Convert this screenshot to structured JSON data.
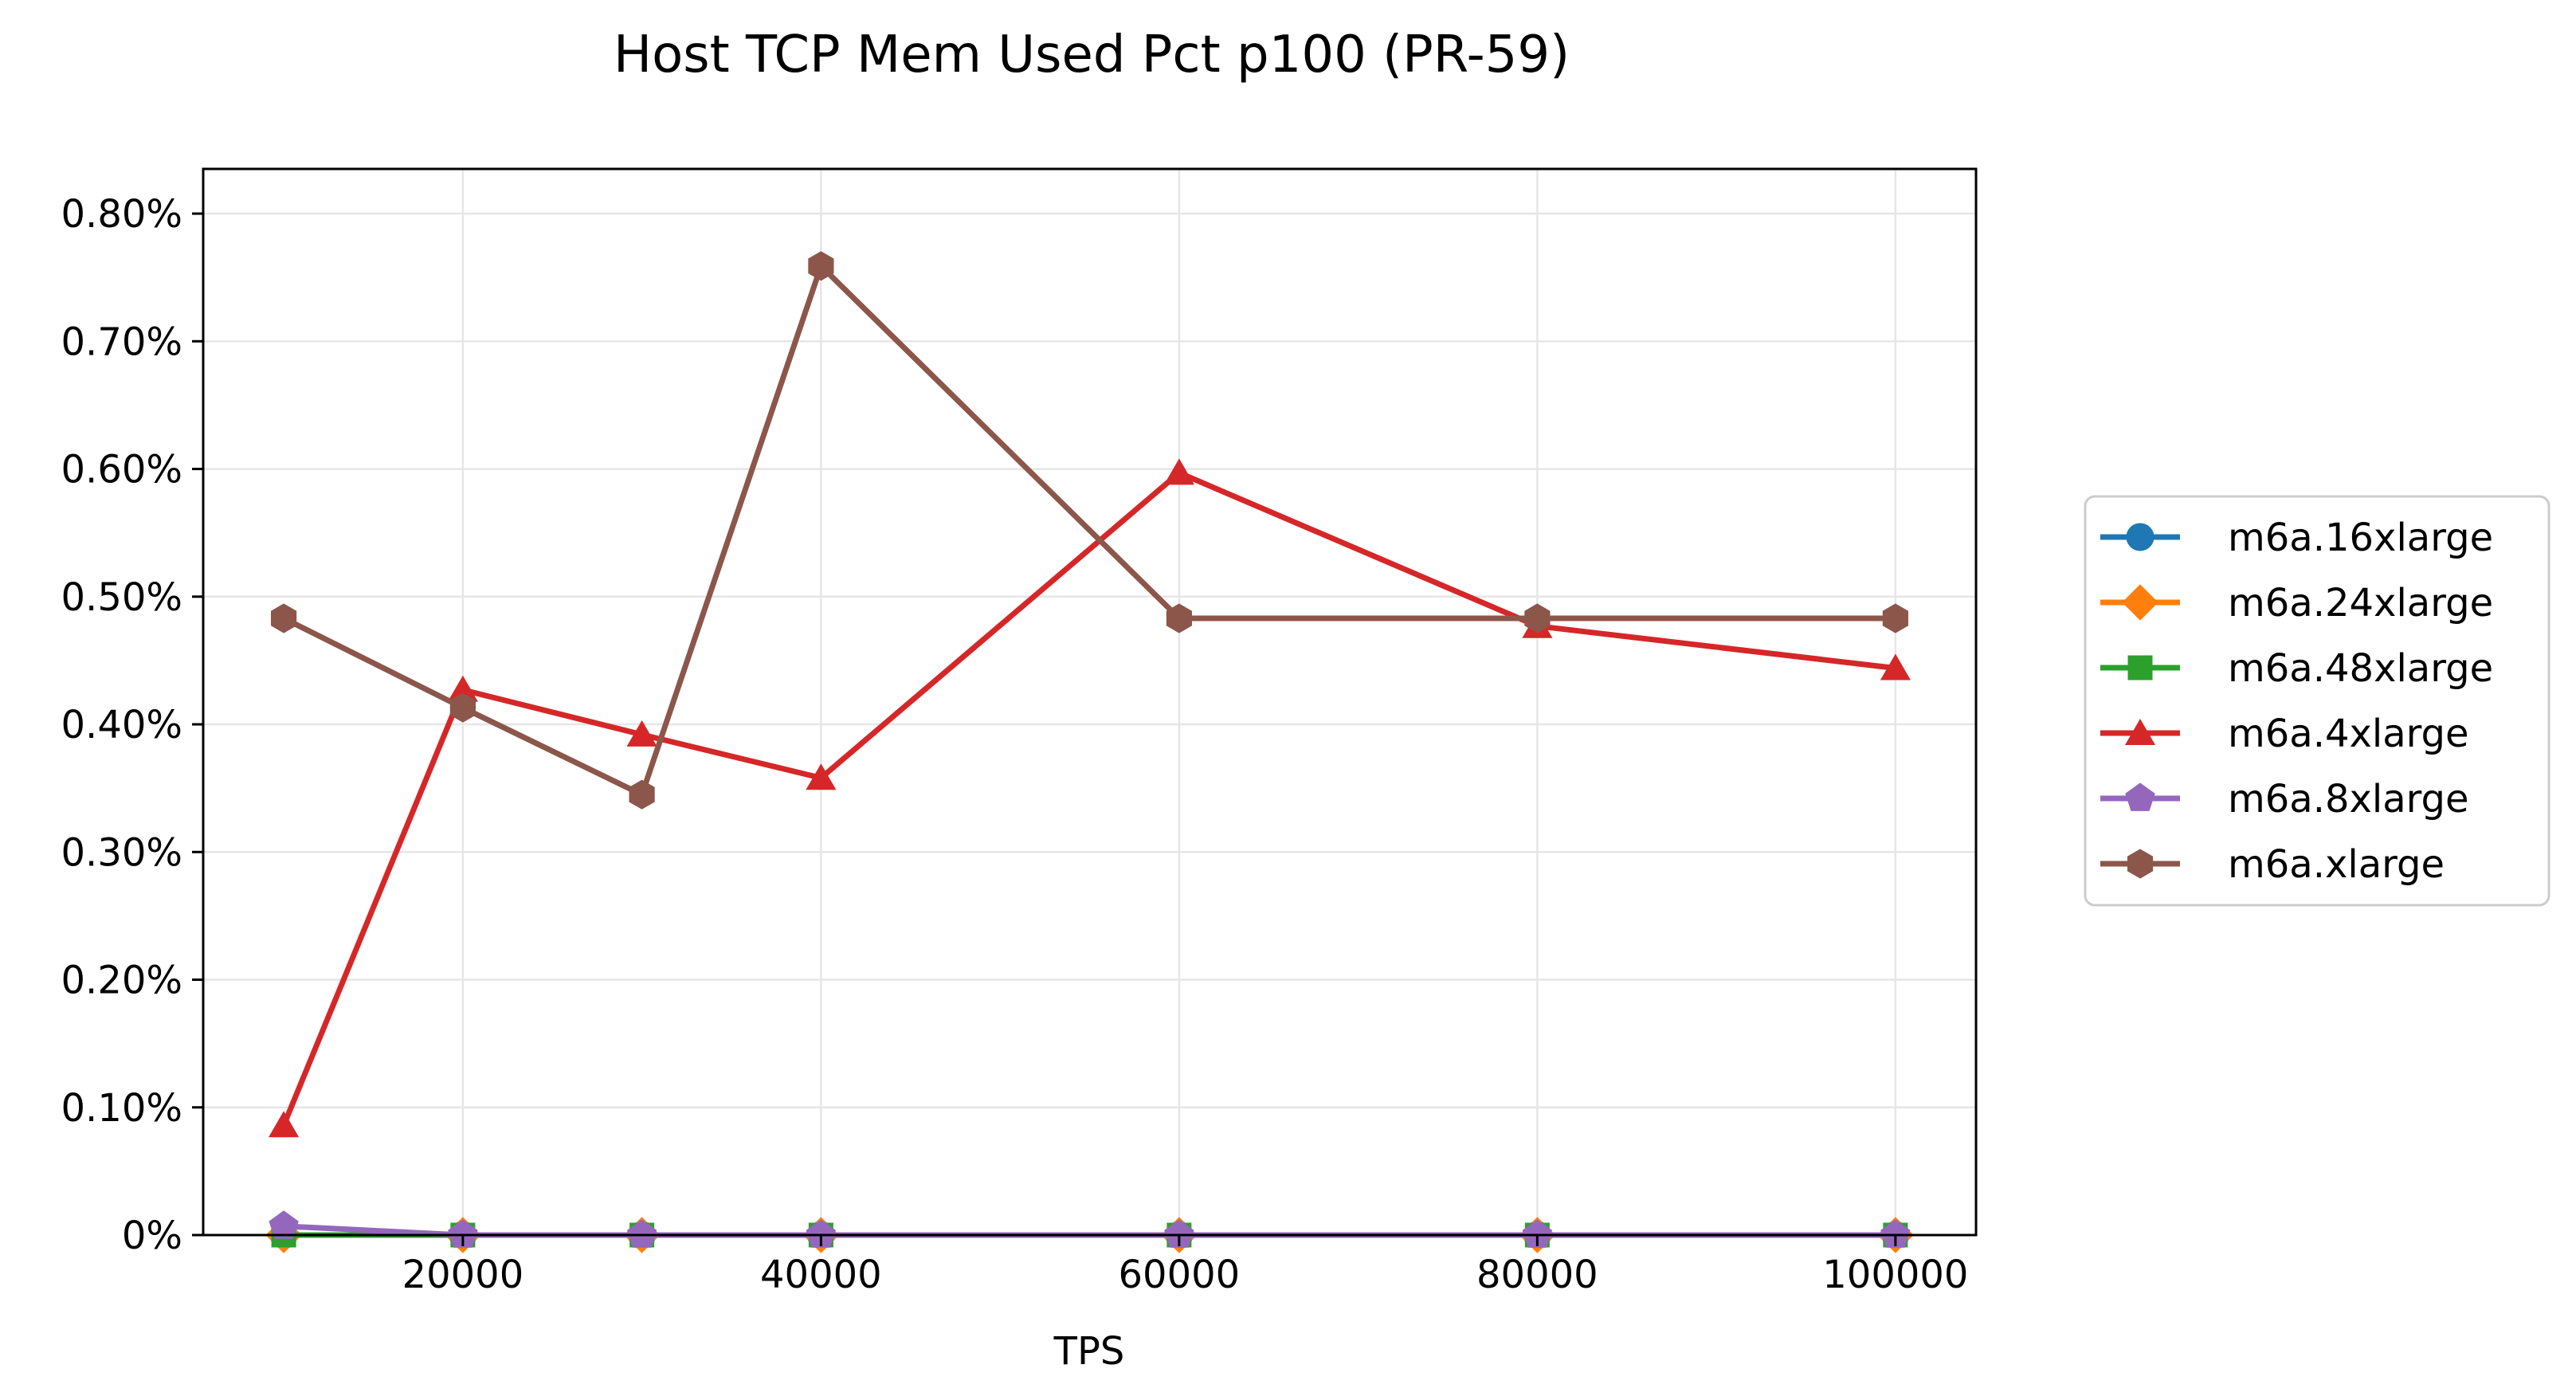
{
  "chart_data": {
    "type": "line",
    "title": "Host TCP Mem Used Pct p100 (PR-59)",
    "xlabel": "TPS",
    "ylabel": "",
    "xlim": [
      5500,
      104500
    ],
    "ylim": [
      0,
      0.00835
    ],
    "x_ticks": [
      20000,
      40000,
      60000,
      80000,
      100000
    ],
    "x_tick_labels": [
      "20000",
      "40000",
      "60000",
      "80000",
      "100000"
    ],
    "y_ticks": [
      0,
      0.001,
      0.002,
      0.003,
      0.004,
      0.005,
      0.006,
      0.007,
      0.008
    ],
    "y_tick_labels": [
      "0%",
      "0.10%",
      "0.20%",
      "0.30%",
      "0.40%",
      "0.50%",
      "0.60%",
      "0.70%",
      "0.80%"
    ],
    "grid": true,
    "legend_position": "right, outside plot",
    "x": [
      10000,
      20000,
      30000,
      40000,
      60000,
      80000,
      100000
    ],
    "series": [
      {
        "name": "m6a.16xlarge",
        "color": "#1f77b4",
        "marker": "circle",
        "values": [
          0,
          0,
          0,
          0,
          0,
          0,
          0
        ]
      },
      {
        "name": "m6a.24xlarge",
        "color": "#ff7f0e",
        "marker": "diamond",
        "values": [
          0,
          0,
          0,
          0,
          0,
          0,
          0
        ]
      },
      {
        "name": "m6a.48xlarge",
        "color": "#2ca02c",
        "marker": "square",
        "values": [
          0,
          0,
          0,
          0,
          0,
          0,
          0
        ]
      },
      {
        "name": "m6a.4xlarge",
        "color": "#d62728",
        "marker": "triangle",
        "values": [
          0.00086,
          0.00427,
          0.00392,
          0.00358,
          0.00597,
          0.00477,
          0.00444
        ]
      },
      {
        "name": "m6a.8xlarge",
        "color": "#9467bd",
        "marker": "pentagon",
        "values": [
          7e-05,
          0,
          0,
          0,
          0,
          0,
          0
        ]
      },
      {
        "name": "m6a.xlarge",
        "color": "#8c564b",
        "marker": "hexagon",
        "values": [
          0.00483,
          0.00413,
          0.00345,
          0.00759,
          0.00483,
          0.00483,
          0.00483
        ]
      }
    ]
  }
}
